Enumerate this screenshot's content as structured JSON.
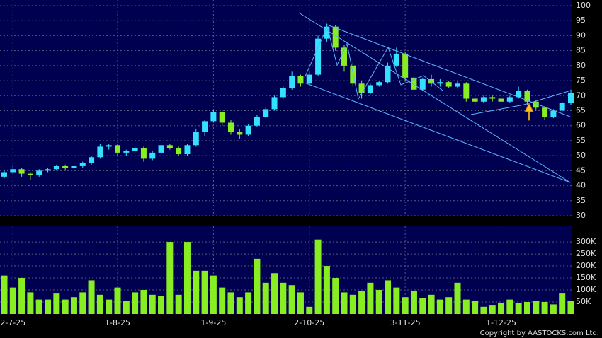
{
  "chart_data": {
    "type": "candlestick",
    "categories": [
      null,
      "2-7-25",
      null,
      null,
      null,
      null,
      null,
      null,
      null,
      null,
      null,
      null,
      null,
      "1-8-25",
      null,
      null,
      null,
      null,
      null,
      null,
      null,
      null,
      null,
      null,
      "1-9-25",
      null,
      null,
      null,
      null,
      null,
      null,
      null,
      null,
      null,
      null,
      "2-10-25",
      null,
      null,
      null,
      null,
      null,
      null,
      null,
      null,
      null,
      null,
      "3-11-25",
      null,
      null,
      null,
      null,
      null,
      null,
      null,
      null,
      null,
      null,
      "1-12-25",
      null,
      null,
      null,
      null,
      null,
      null,
      null,
      null
    ],
    "open": [
      43,
      44.5,
      45.5,
      44,
      43.5,
      45,
      45.5,
      46.5,
      46,
      46.5,
      47.5,
      49.5,
      53,
      53.5,
      51,
      51.5,
      52.5,
      49,
      51,
      53.5,
      52.5,
      50.5,
      53.5,
      58,
      61.5,
      64.5,
      61,
      58,
      57,
      60,
      63,
      65.5,
      69.5,
      72.5,
      76.5,
      74,
      77,
      89,
      93,
      86,
      80,
      74,
      71,
      73.5,
      74.5,
      80,
      84,
      76,
      72,
      75.5,
      74,
      74.5,
      73,
      74,
      69,
      68,
      69.5,
      69,
      68,
      69.5,
      71.5,
      68,
      66,
      63,
      65,
      67.5
    ],
    "high": [
      45,
      47,
      46,
      44.5,
      45.5,
      46,
      47,
      47,
      47,
      48,
      50,
      54,
      54,
      54,
      52,
      53,
      53,
      51.5,
      54,
      54,
      53,
      54,
      59,
      62,
      65.5,
      65,
      62,
      59,
      60.5,
      63.5,
      66,
      70,
      73,
      78,
      77,
      78,
      90,
      94,
      93.5,
      87,
      81,
      75,
      74,
      75,
      81,
      86,
      84.5,
      77,
      76,
      77,
      75.5,
      75,
      75,
      74.5,
      69.5,
      70,
      70,
      69.5,
      70,
      73,
      72,
      68.5,
      66.5,
      65.5,
      68,
      72
    ],
    "low": [
      42.5,
      44,
      43,
      42,
      43,
      44.5,
      45,
      45,
      45.5,
      46,
      47,
      49,
      52,
      50,
      50,
      51,
      48,
      48.5,
      50.5,
      52,
      50,
      50,
      53,
      56.5,
      61,
      60,
      57,
      55.5,
      56.5,
      59.5,
      62.5,
      65,
      69,
      72,
      73,
      73.5,
      76.5,
      88,
      85,
      78,
      73,
      69,
      70.5,
      73,
      74,
      79.5,
      75,
      71,
      71.5,
      73,
      73,
      72.5,
      72.5,
      68,
      67,
      67.5,
      68,
      67,
      67.5,
      69,
      67,
      65,
      62,
      62.5,
      64.5,
      67
    ],
    "close": [
      44.5,
      45.5,
      44,
      43.5,
      45,
      45.5,
      46.5,
      46,
      46.5,
      47.5,
      49.5,
      53,
      53.5,
      51,
      51.5,
      52.5,
      49,
      51,
      53.5,
      52.5,
      50.5,
      53.5,
      58,
      61.5,
      64.5,
      61,
      58,
      57,
      60,
      63,
      65.5,
      69.5,
      72.5,
      76.5,
      74,
      77,
      89,
      93,
      86,
      80,
      74,
      71,
      73.5,
      74.5,
      80,
      84,
      76,
      72,
      75.5,
      74,
      74.5,
      73,
      74,
      69,
      68,
      69.5,
      69,
      68,
      69.5,
      71.5,
      68,
      66,
      63,
      65,
      67.5,
      71
    ],
    "volume": [
      160000,
      110000,
      150000,
      90000,
      60000,
      60000,
      85000,
      60000,
      70000,
      90000,
      140000,
      80000,
      60000,
      110000,
      55000,
      90000,
      100000,
      80000,
      75000,
      300000,
      80000,
      300000,
      180000,
      180000,
      160000,
      110000,
      90000,
      70000,
      90000,
      230000,
      130000,
      170000,
      130000,
      120000,
      90000,
      30000,
      310000,
      200000,
      150000,
      90000,
      80000,
      95000,
      130000,
      100000,
      140000,
      110000,
      70000,
      95000,
      65000,
      80000,
      60000,
      70000,
      130000,
      60000,
      55000,
      30000,
      35000,
      45000,
      60000,
      45000,
      50000,
      55000,
      50000,
      40000,
      85000,
      55000
    ],
    "up_color": "#33e0ff",
    "down_color": "#88ee22",
    "volume_color": "#88ee22",
    "ylim": [
      30,
      100
    ],
    "yticks": [
      30,
      35,
      40,
      45,
      50,
      55,
      60,
      65,
      70,
      75,
      80,
      85,
      90,
      95,
      100
    ],
    "volume_ylim": [
      0,
      365000
    ],
    "volume_ticks": [
      {
        "value": 50000,
        "label": "50K"
      },
      {
        "value": 100000,
        "label": "100K"
      },
      {
        "value": 150000,
        "label": "150K"
      },
      {
        "value": 200000,
        "label": "200K"
      },
      {
        "value": 250000,
        "label": "250K"
      },
      {
        "value": 300000,
        "label": "300K"
      }
    ],
    "grid": true
  },
  "footer": "Copyright by AASTOCKS.com Ltd."
}
